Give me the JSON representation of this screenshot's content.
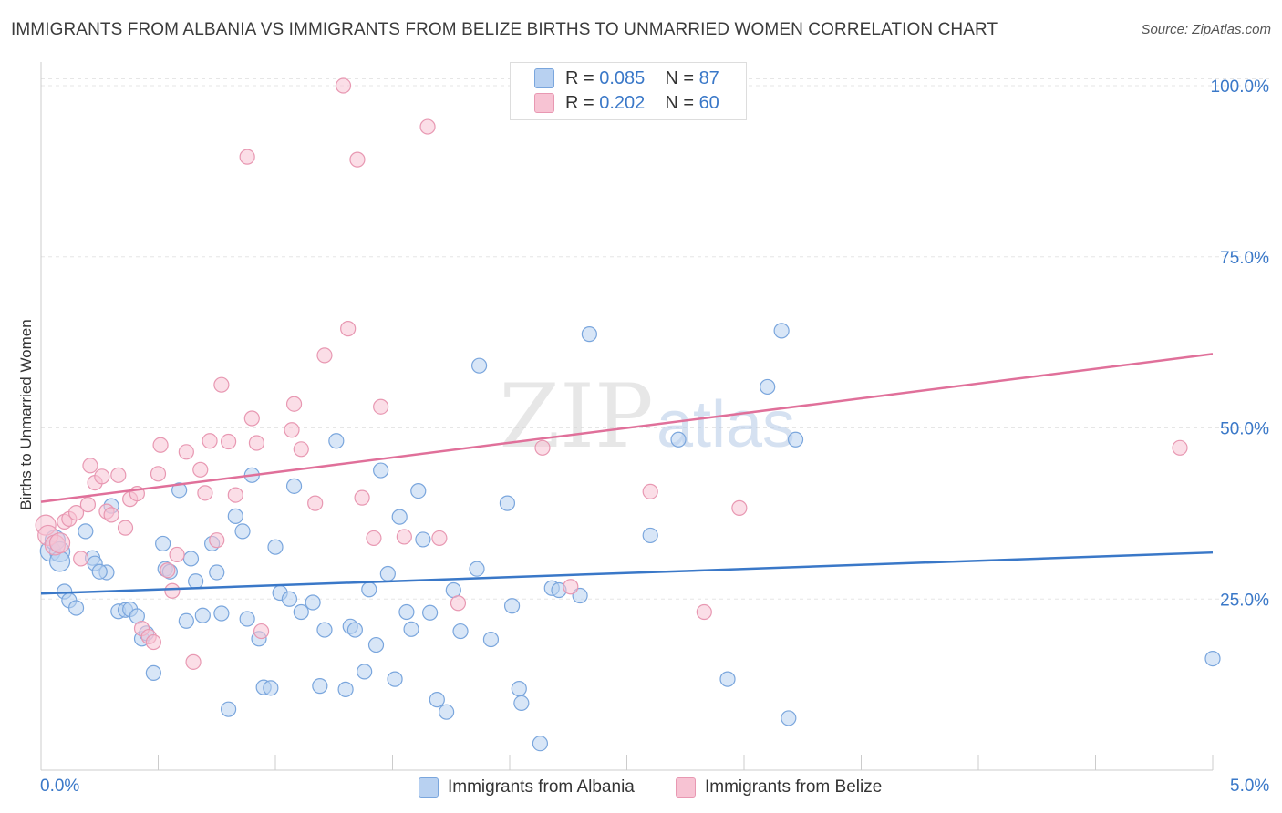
{
  "title": "IMMIGRANTS FROM ALBANIA VS IMMIGRANTS FROM BELIZE BIRTHS TO UNMARRIED WOMEN CORRELATION CHART",
  "source": "Source: ZipAtlas.com",
  "watermark": {
    "zip": "ZIP",
    "atlas": "atlas"
  },
  "legend": {
    "albania": {
      "r_label": "R =",
      "r_value": "0.085",
      "n_label": "N =",
      "n_value": "87"
    },
    "belize": {
      "r_label": "R =",
      "r_value": "0.202",
      "n_label": "N =",
      "n_value": "60"
    }
  },
  "colors": {
    "albania_fill": "#b8d1f1",
    "albania_stroke": "#7aa6dd",
    "albania_line": "#3a78c8",
    "belize_fill": "#f7c3d3",
    "belize_stroke": "#e898b2",
    "belize_line": "#e0709a",
    "axis_label": "#3a78c8",
    "grid": "#e6e6e6"
  },
  "chart_data": {
    "type": "scatter",
    "title": "IMMIGRANTS FROM ALBANIA VS IMMIGRANTS FROM BELIZE BIRTHS TO UNMARRIED WOMEN CORRELATION CHART",
    "xlabel": "",
    "ylabel": "Births to Unmarried Women",
    "xlim": [
      0,
      5
    ],
    "ylim": [
      0,
      102
    ],
    "x_tick_labels": [
      "0.0%",
      "5.0%"
    ],
    "y_ticks": [
      25,
      50,
      75,
      100
    ],
    "y_tick_labels": [
      "25.0%",
      "50.0%",
      "75.0%",
      "100.0%"
    ],
    "grid": true,
    "legend_position": "bottom",
    "series": [
      {
        "name": "Immigrants from Albania",
        "trend": {
          "x": [
            0,
            5
          ],
          "y": [
            25.8,
            31.8
          ]
        },
        "points": [
          [
            0.04,
            32.0
          ],
          [
            0.06,
            33.6
          ],
          [
            0.08,
            31.9
          ],
          [
            0.08,
            30.5
          ],
          [
            0.1,
            26.1
          ],
          [
            0.12,
            24.8
          ],
          [
            0.15,
            23.7
          ],
          [
            0.19,
            34.9
          ],
          [
            0.22,
            31.0
          ],
          [
            0.23,
            30.2
          ],
          [
            0.28,
            28.9
          ],
          [
            0.3,
            38.6
          ],
          [
            0.33,
            23.2
          ],
          [
            0.36,
            23.4
          ],
          [
            0.38,
            23.5
          ],
          [
            0.41,
            22.5
          ],
          [
            0.43,
            19.2
          ],
          [
            0.45,
            20.0
          ],
          [
            0.48,
            14.2
          ],
          [
            0.52,
            33.1
          ],
          [
            0.53,
            29.4
          ],
          [
            0.55,
            29.0
          ],
          [
            0.59,
            40.9
          ],
          [
            0.62,
            21.8
          ],
          [
            0.64,
            30.9
          ],
          [
            0.66,
            27.6
          ],
          [
            0.69,
            22.6
          ],
          [
            0.73,
            33.1
          ],
          [
            0.75,
            28.9
          ],
          [
            0.77,
            22.9
          ],
          [
            0.8,
            8.9
          ],
          [
            0.83,
            37.1
          ],
          [
            0.86,
            34.9
          ],
          [
            0.88,
            22.1
          ],
          [
            0.9,
            43.1
          ],
          [
            0.93,
            19.2
          ],
          [
            0.95,
            12.1
          ],
          [
            0.98,
            12.0
          ],
          [
            1.0,
            32.6
          ],
          [
            1.02,
            25.9
          ],
          [
            1.06,
            25.0
          ],
          [
            1.08,
            41.5
          ],
          [
            1.11,
            23.1
          ],
          [
            1.16,
            24.5
          ],
          [
            1.19,
            12.3
          ],
          [
            1.21,
            20.5
          ],
          [
            1.26,
            48.1
          ],
          [
            1.3,
            11.8
          ],
          [
            1.32,
            21.0
          ],
          [
            1.34,
            20.5
          ],
          [
            1.38,
            14.4
          ],
          [
            1.4,
            26.4
          ],
          [
            1.43,
            18.3
          ],
          [
            1.45,
            43.8
          ],
          [
            1.48,
            28.7
          ],
          [
            1.51,
            13.3
          ],
          [
            1.53,
            37.0
          ],
          [
            1.56,
            23.1
          ],
          [
            1.58,
            20.6
          ],
          [
            1.61,
            40.8
          ],
          [
            1.63,
            33.7
          ],
          [
            1.66,
            23.0
          ],
          [
            1.69,
            10.3
          ],
          [
            1.73,
            8.5
          ],
          [
            1.76,
            26.3
          ],
          [
            1.79,
            20.3
          ],
          [
            1.86,
            29.4
          ],
          [
            1.87,
            59.1
          ],
          [
            1.92,
            19.1
          ],
          [
            1.99,
            39.0
          ],
          [
            2.01,
            24.0
          ],
          [
            2.04,
            11.9
          ],
          [
            2.05,
            9.8
          ],
          [
            2.13,
            3.9
          ],
          [
            2.18,
            26.6
          ],
          [
            2.21,
            26.3
          ],
          [
            2.3,
            25.5
          ],
          [
            2.34,
            63.7
          ],
          [
            2.6,
            34.3
          ],
          [
            2.72,
            48.3
          ],
          [
            2.93,
            13.3
          ],
          [
            3.1,
            56.0
          ],
          [
            3.16,
            64.2
          ],
          [
            3.19,
            7.6
          ],
          [
            3.22,
            48.3
          ],
          [
            5.0,
            16.3
          ],
          [
            0.25,
            29.0
          ]
        ]
      },
      {
        "name": "Immigrants from Belize",
        "trend": {
          "x": [
            0,
            5
          ],
          "y": [
            39.2,
            60.8
          ]
        },
        "points": [
          [
            0.02,
            35.8
          ],
          [
            0.03,
            34.3
          ],
          [
            0.06,
            32.9
          ],
          [
            0.08,
            33.2
          ],
          [
            0.1,
            36.3
          ],
          [
            0.12,
            36.7
          ],
          [
            0.15,
            37.6
          ],
          [
            0.17,
            30.9
          ],
          [
            0.2,
            38.8
          ],
          [
            0.21,
            44.5
          ],
          [
            0.23,
            42.0
          ],
          [
            0.26,
            42.9
          ],
          [
            0.28,
            37.8
          ],
          [
            0.3,
            37.3
          ],
          [
            0.33,
            43.1
          ],
          [
            0.36,
            35.4
          ],
          [
            0.38,
            39.6
          ],
          [
            0.41,
            40.4
          ],
          [
            0.43,
            20.7
          ],
          [
            0.46,
            19.5
          ],
          [
            0.48,
            18.7
          ],
          [
            0.5,
            43.3
          ],
          [
            0.51,
            47.5
          ],
          [
            0.54,
            29.2
          ],
          [
            0.56,
            26.2
          ],
          [
            0.58,
            31.5
          ],
          [
            0.62,
            46.5
          ],
          [
            0.65,
            15.8
          ],
          [
            0.68,
            43.9
          ],
          [
            0.7,
            40.5
          ],
          [
            0.72,
            48.1
          ],
          [
            0.75,
            33.6
          ],
          [
            0.77,
            56.3
          ],
          [
            0.8,
            48.0
          ],
          [
            0.83,
            40.2
          ],
          [
            0.88,
            89.6
          ],
          [
            0.9,
            51.4
          ],
          [
            0.92,
            47.8
          ],
          [
            0.94,
            20.3
          ],
          [
            1.07,
            49.7
          ],
          [
            1.08,
            53.5
          ],
          [
            1.11,
            46.9
          ],
          [
            1.17,
            39.0
          ],
          [
            1.21,
            60.6
          ],
          [
            1.29,
            100.0
          ],
          [
            1.31,
            64.5
          ],
          [
            1.35,
            89.2
          ],
          [
            1.37,
            39.8
          ],
          [
            1.42,
            33.9
          ],
          [
            1.45,
            53.1
          ],
          [
            1.55,
            34.1
          ],
          [
            1.65,
            94.0
          ],
          [
            1.7,
            33.9
          ],
          [
            1.78,
            24.4
          ],
          [
            2.14,
            47.1
          ],
          [
            2.26,
            26.8
          ],
          [
            2.6,
            40.7
          ],
          [
            2.83,
            23.1
          ],
          [
            2.98,
            38.3
          ],
          [
            4.86,
            47.1
          ]
        ]
      }
    ]
  },
  "axis": {
    "x_min_label": "0.0%",
    "x_max_label": "5.0%"
  },
  "bottom_legend": {
    "albania": "Immigrants from Albania",
    "belize": "Immigrants from Belize"
  }
}
